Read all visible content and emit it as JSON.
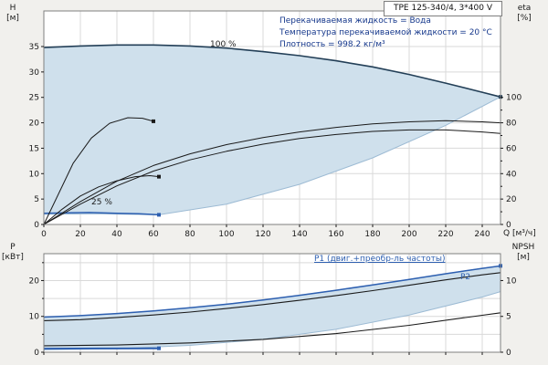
{
  "title_box": {
    "text": "TPE 125-340/4, 3*400 V"
  },
  "info_lines": [
    "Перекачиваемая жидкость = Вода",
    "Температура перекачиваемой жидкости = 20 °C",
    "Плотность = 998.2 кг/м³"
  ],
  "colors": {
    "accent_blue": "#2d5fb0",
    "curve_dark": "#233f57",
    "black": "#1a1a1a",
    "fill_blue": "#cfe0ec",
    "fill_stroke": "#9dbbd4",
    "grid": "#d9d9d9",
    "axis": "#7f7f7f",
    "text": "#1a1a1a",
    "info_text": "#16388c"
  },
  "chart_data": [
    {
      "id": "hq",
      "type": "line",
      "x_axis": {
        "unit_label": "Q [м³/ч]",
        "range": [
          0,
          250
        ],
        "ticks": [
          0,
          20,
          40,
          60,
          80,
          100,
          120,
          140,
          160,
          180,
          200,
          220,
          240
        ],
        "show_labels": true
      },
      "y_axis": {
        "name": "H",
        "unit": "[м]",
        "range": [
          0,
          42
        ],
        "ticks": [
          0,
          5,
          10,
          15,
          20,
          25,
          30,
          35
        ],
        "grid": [
          5,
          10,
          15,
          20,
          25,
          30,
          35
        ]
      },
      "y2_axis": {
        "name": "eta",
        "unit": "[%]",
        "ticks": [
          0,
          20,
          40,
          60,
          80,
          100
        ],
        "minor_ticks": [
          10,
          30,
          50,
          70,
          90
        ],
        "scale_to_y": 0.25
      },
      "annotations": [
        {
          "text": "100 %"
        },
        {
          "text": "25 %"
        }
      ],
      "series": [
        {
          "name": "operating-envelope",
          "fill": "#cfe0ec",
          "stroke": "#9dbbd4",
          "upper": [
            [
              0,
              34.8
            ],
            [
              20,
              35.1
            ],
            [
              40,
              35.3
            ],
            [
              60,
              35.3
            ],
            [
              80,
              35.1
            ],
            [
              100,
              34.7
            ],
            [
              120,
              34.0
            ],
            [
              140,
              33.2
            ],
            [
              160,
              32.2
            ],
            [
              180,
              31.0
            ],
            [
              200,
              29.5
            ],
            [
              220,
              27.8
            ],
            [
              240,
              26.0
            ],
            [
              250,
              25.1
            ]
          ],
          "lower": [
            [
              0,
              2.0
            ],
            [
              30,
              2.1
            ],
            [
              63,
              1.9
            ],
            [
              100,
              4.0
            ],
            [
              140,
              7.9
            ],
            [
              180,
              13.1
            ],
            [
              220,
              19.5
            ],
            [
              250,
              25.1
            ]
          ]
        },
        {
          "name": "h-curve-100",
          "color": "#233f57",
          "width": 1.6,
          "marker_end": true,
          "points": [
            [
              0,
              34.8
            ],
            [
              20,
              35.1
            ],
            [
              40,
              35.3
            ],
            [
              60,
              35.3
            ],
            [
              80,
              35.1
            ],
            [
              100,
              34.7
            ],
            [
              120,
              34.0
            ],
            [
              140,
              33.2
            ],
            [
              160,
              32.2
            ],
            [
              180,
              31.0
            ],
            [
              200,
              29.5
            ],
            [
              220,
              27.8
            ],
            [
              240,
              26.0
            ],
            [
              250,
              25.1
            ]
          ]
        },
        {
          "name": "h-curve-25",
          "color": "#2d5fb0",
          "width": 1.5,
          "marker_end": true,
          "points": [
            [
              0,
              2.2
            ],
            [
              12,
              2.3
            ],
            [
              25,
              2.35
            ],
            [
              40,
              2.2
            ],
            [
              52,
              2.1
            ],
            [
              63,
              1.9
            ]
          ]
        },
        {
          "name": "eta-curve-1",
          "color": "#1a1a1a",
          "width": 1,
          "points": [
            [
              0,
              0
            ],
            [
              20,
              4.5
            ],
            [
              40,
              8.5
            ],
            [
              60,
              11.6
            ],
            [
              80,
              13.9
            ],
            [
              100,
              15.7
            ],
            [
              120,
              17.1
            ],
            [
              140,
              18.2
            ],
            [
              160,
              19.1
            ],
            [
              180,
              19.8
            ],
            [
              200,
              20.2
            ],
            [
              220,
              20.4
            ],
            [
              240,
              20.2
            ],
            [
              250,
              20.0
            ]
          ]
        },
        {
          "name": "eta-curve-2",
          "color": "#1a1a1a",
          "width": 1,
          "points": [
            [
              0,
              0
            ],
            [
              20,
              4.0
            ],
            [
              40,
              7.6
            ],
            [
              60,
              10.5
            ],
            [
              80,
              12.7
            ],
            [
              100,
              14.4
            ],
            [
              120,
              15.8
            ],
            [
              140,
              16.9
            ],
            [
              160,
              17.7
            ],
            [
              180,
              18.3
            ],
            [
              200,
              18.6
            ],
            [
              220,
              18.6
            ],
            [
              240,
              18.2
            ],
            [
              250,
              17.9
            ]
          ]
        },
        {
          "name": "eta-curve-25-a",
          "color": "#1a1a1a",
          "width": 1,
          "marker_end": true,
          "points": [
            [
              0,
              0
            ],
            [
              8,
              6.0
            ],
            [
              16,
              12.0
            ],
            [
              26,
              17.0
            ],
            [
              36,
              19.9
            ],
            [
              46,
              21.0
            ],
            [
              54,
              20.9
            ],
            [
              60,
              20.3
            ]
          ]
        },
        {
          "name": "eta-curve-25-b",
          "color": "#1a1a1a",
          "width": 1,
          "marker_end": true,
          "points": [
            [
              0,
              0
            ],
            [
              10,
              3.0
            ],
            [
              20,
              5.6
            ],
            [
              30,
              7.4
            ],
            [
              40,
              8.6
            ],
            [
              50,
              9.4
            ],
            [
              58,
              9.6
            ],
            [
              63,
              9.4
            ]
          ]
        }
      ]
    },
    {
      "id": "pq",
      "type": "line",
      "x_axis": {
        "unit_label": "",
        "range": [
          0,
          250
        ],
        "ticks": [
          0,
          20,
          40,
          60,
          80,
          100,
          120,
          140,
          160,
          180,
          200,
          220,
          240
        ],
        "show_labels": false
      },
      "y_axis": {
        "name": "P",
        "unit": "[кВт]",
        "range": [
          0,
          27.5
        ],
        "ticks": [
          0,
          10,
          20
        ],
        "grid": [
          5,
          10,
          15,
          20,
          25
        ],
        "minor_ticks": [
          5,
          15,
          25
        ]
      },
      "y2_axis": {
        "name": "NPSH",
        "unit": "[м]",
        "ticks": [
          0,
          5,
          10
        ],
        "scale_to_y": 2
      },
      "annotations": [
        {
          "text": "P1 (двиг.+преобр-ль частоты)"
        },
        {
          "text": "P2"
        }
      ],
      "series": [
        {
          "name": "power-envelope",
          "fill": "#cfe0ec",
          "stroke": "#9dbbd4",
          "upper": [
            [
              0,
              9.8
            ],
            [
              20,
              10.2
            ],
            [
              40,
              10.8
            ],
            [
              60,
              11.5
            ],
            [
              80,
              12.4
            ],
            [
              100,
              13.4
            ],
            [
              120,
              14.6
            ],
            [
              140,
              15.9
            ],
            [
              160,
              17.3
            ],
            [
              180,
              18.8
            ],
            [
              200,
              20.3
            ],
            [
              220,
              21.9
            ],
            [
              240,
              23.4
            ],
            [
              250,
              24.1
            ]
          ],
          "lower": [
            [
              0,
              0.7
            ],
            [
              40,
              1.0
            ],
            [
              80,
              1.9
            ],
            [
              120,
              3.6
            ],
            [
              160,
              6.4
            ],
            [
              200,
              10.4
            ],
            [
              240,
              15.4
            ],
            [
              250,
              16.9
            ]
          ]
        },
        {
          "name": "p1-curve",
          "color": "#2d5fb0",
          "width": 1.5,
          "marker_end": true,
          "points": [
            [
              0,
              9.8
            ],
            [
              20,
              10.2
            ],
            [
              40,
              10.8
            ],
            [
              60,
              11.5
            ],
            [
              80,
              12.4
            ],
            [
              100,
              13.4
            ],
            [
              120,
              14.6
            ],
            [
              140,
              15.9
            ],
            [
              160,
              17.3
            ],
            [
              180,
              18.8
            ],
            [
              200,
              20.3
            ],
            [
              220,
              21.9
            ],
            [
              240,
              23.4
            ],
            [
              250,
              24.1
            ]
          ]
        },
        {
          "name": "p2-curve",
          "color": "#1a1a1a",
          "width": 1.1,
          "points": [
            [
              0,
              8.8
            ],
            [
              20,
              9.1
            ],
            [
              40,
              9.7
            ],
            [
              60,
              10.4
            ],
            [
              80,
              11.2
            ],
            [
              100,
              12.2
            ],
            [
              120,
              13.3
            ],
            [
              140,
              14.5
            ],
            [
              160,
              15.8
            ],
            [
              180,
              17.2
            ],
            [
              200,
              18.7
            ],
            [
              220,
              20.2
            ],
            [
              240,
              21.6
            ],
            [
              250,
              22.2
            ]
          ]
        },
        {
          "name": "npsh-curve",
          "color": "#1a1a1a",
          "width": 1.1,
          "points": [
            [
              0,
              1.8
            ],
            [
              40,
              2.0
            ],
            [
              80,
              2.6
            ],
            [
              120,
              3.6
            ],
            [
              160,
              5.2
            ],
            [
              200,
              7.5
            ],
            [
              240,
              10.3
            ],
            [
              250,
              11.0
            ]
          ]
        },
        {
          "name": "p-curve-25",
          "color": "#2d5fb0",
          "width": 2,
          "marker_end": true,
          "points": [
            [
              0,
              1.0
            ],
            [
              30,
              1.05
            ],
            [
              63,
              1.1
            ]
          ]
        }
      ]
    }
  ]
}
